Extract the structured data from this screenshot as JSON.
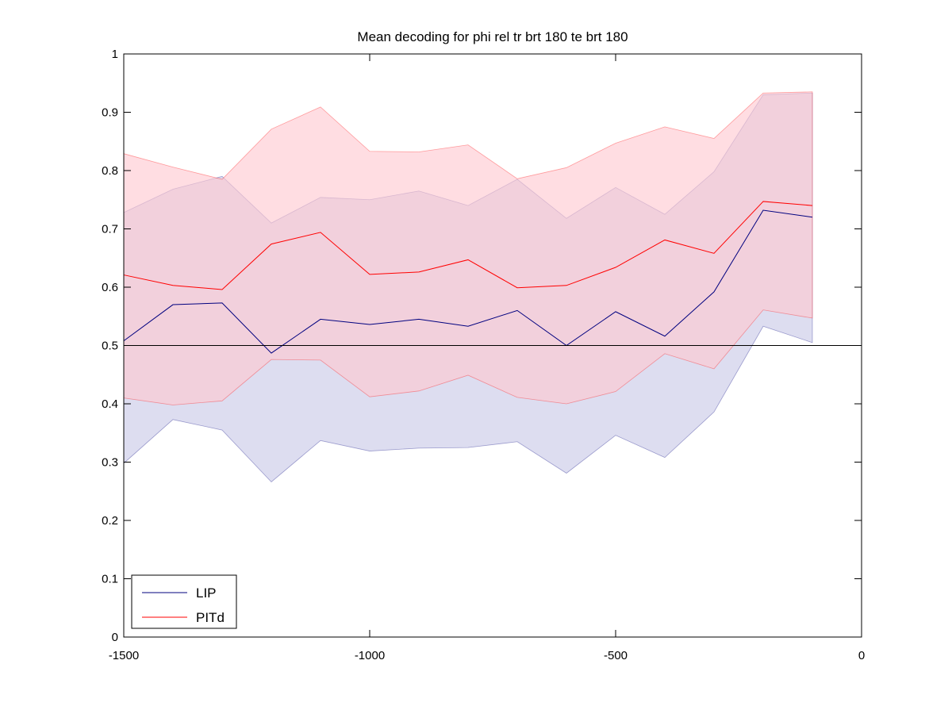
{
  "chart_data": {
    "type": "line",
    "title": "Mean decoding for phi rel tr brt 180 te brt 180",
    "xlabel": "",
    "ylabel": "",
    "xlim": [
      -1500,
      0
    ],
    "ylim": [
      0,
      1
    ],
    "xticks": [
      -1500,
      -1000,
      -500,
      0
    ],
    "xtick_labels": [
      "-1500",
      "-1000",
      "-500",
      "0"
    ],
    "yticks": [
      0,
      0.1,
      0.2,
      0.3,
      0.4,
      0.5,
      0.6,
      0.7,
      0.8,
      0.9,
      1
    ],
    "ytick_labels": [
      "0",
      "0.1",
      "0.2",
      "0.3",
      "0.4",
      "0.5",
      "0.6",
      "0.7",
      "0.8",
      "0.9",
      "1"
    ],
    "reference_line": 0.5,
    "grid": false,
    "legend_position": "bottom-left",
    "x": [
      -1500,
      -1400,
      -1300,
      -1200,
      -1100,
      -1000,
      -900,
      -800,
      -700,
      -600,
      -500,
      -400,
      -300,
      -200,
      -100
    ],
    "series": [
      {
        "name": "LIP",
        "color": "#00007f",
        "band_color": "#c8c8e6",
        "values": [
          0.508,
          0.57,
          0.573,
          0.487,
          0.545,
          0.536,
          0.545,
          0.533,
          0.56,
          0.5,
          0.558,
          0.516,
          0.592,
          0.732,
          0.72
        ],
        "upper": [
          0.728,
          0.768,
          0.79,
          0.71,
          0.754,
          0.75,
          0.765,
          0.74,
          0.785,
          0.718,
          0.771,
          0.725,
          0.798,
          0.93,
          0.933
        ],
        "lower": [
          0.298,
          0.373,
          0.355,
          0.266,
          0.337,
          0.319,
          0.324,
          0.325,
          0.335,
          0.281,
          0.346,
          0.308,
          0.386,
          0.533,
          0.505
        ]
      },
      {
        "name": "PITd",
        "color": "#ff0000",
        "band_color": "#ffc8d0",
        "values": [
          0.621,
          0.603,
          0.596,
          0.674,
          0.694,
          0.622,
          0.626,
          0.647,
          0.599,
          0.603,
          0.634,
          0.681,
          0.658,
          0.747,
          0.74
        ],
        "upper": [
          0.829,
          0.806,
          0.785,
          0.871,
          0.909,
          0.833,
          0.832,
          0.844,
          0.786,
          0.805,
          0.847,
          0.875,
          0.855,
          0.933,
          0.935
        ],
        "lower": [
          0.41,
          0.398,
          0.405,
          0.476,
          0.475,
          0.412,
          0.422,
          0.449,
          0.411,
          0.4,
          0.421,
          0.486,
          0.46,
          0.561,
          0.547
        ]
      }
    ]
  }
}
